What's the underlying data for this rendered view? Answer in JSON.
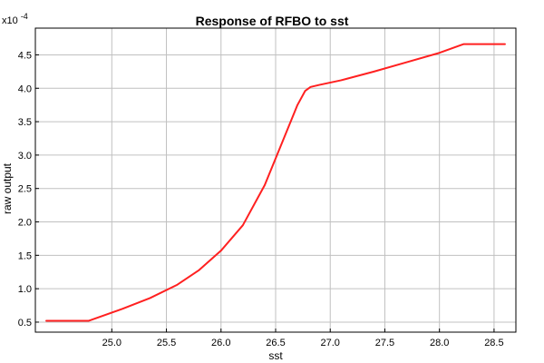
{
  "chart_data": {
    "type": "line",
    "title": "Response of RFBO to sst",
    "xlabel": "sst",
    "ylabel": "raw output",
    "y_scale_label": "x10",
    "y_scale_exponent": "-4",
    "xlim": [
      24.3,
      28.7
    ],
    "ylim": [
      0.35,
      4.9
    ],
    "x_ticks": [
      25.0,
      25.5,
      26.0,
      26.5,
      27.0,
      27.5,
      28.0,
      28.5
    ],
    "x_tick_labels": [
      "25.0",
      "25.5",
      "26.0",
      "26.5",
      "27.0",
      "27.5",
      "28.0",
      "28.5"
    ],
    "y_ticks": [
      0.5,
      1.0,
      1.5,
      2.0,
      2.5,
      3.0,
      3.5,
      4.0,
      4.5
    ],
    "y_tick_labels": [
      "0.5",
      "1.0",
      "1.5",
      "2.0",
      "2.5",
      "3.0",
      "3.5",
      "4.0",
      "4.5"
    ],
    "grid": true,
    "legend": "none",
    "series": [
      {
        "color": "#ff2020",
        "x": [
          24.4,
          24.79,
          25.1,
          25.35,
          25.6,
          25.8,
          26.0,
          26.2,
          26.4,
          26.55,
          26.7,
          26.77,
          26.82,
          26.9,
          27.1,
          27.4,
          27.7,
          28.0,
          28.22,
          28.6
        ],
        "y": [
          0.52,
          0.52,
          0.7,
          0.86,
          1.06,
          1.28,
          1.57,
          1.95,
          2.55,
          3.15,
          3.75,
          3.96,
          4.02,
          4.05,
          4.12,
          4.25,
          4.39,
          4.53,
          4.66,
          4.66
        ]
      }
    ]
  }
}
